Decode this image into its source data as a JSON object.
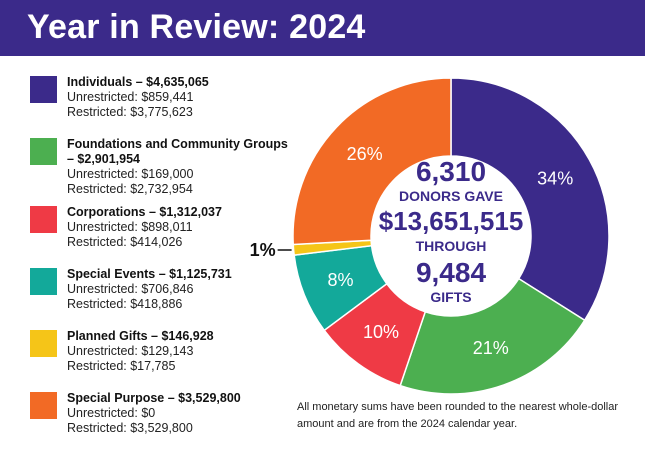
{
  "title": "Year in Review: 2024",
  "colors": {
    "header_bg": "#3b2a8a",
    "individuals": "#3b2a8a",
    "foundations": "#4caf50",
    "corporations": "#ef3a45",
    "special_events": "#13a99a",
    "planned_gifts": "#f5c518",
    "special_purpose": "#f26a25"
  },
  "legend": [
    {
      "name": "Individuals – $4,635,065",
      "lines": [
        "Unrestricted: $859,441",
        "Restricted: $3,775,623"
      ],
      "color": "#3b2a8a"
    },
    {
      "name": "Foundations and Community Groups – $2,901,954",
      "lines": [
        "Unrestricted: $169,000",
        "Restricted: $2,732,954"
      ],
      "color": "#4caf50"
    },
    {
      "name": "Corporations – $1,312,037",
      "lines": [
        "Unrestricted: $898,011",
        "Restricted: $414,026"
      ],
      "color": "#ef3a45"
    },
    {
      "name": "Special Events – $1,125,731",
      "lines": [
        "Unrestricted: $706,846",
        "Restricted: $418,886"
      ],
      "color": "#13a99a"
    },
    {
      "name": "Planned Gifts – $146,928",
      "lines": [
        "Unrestricted: $129,143",
        "Restricted: $17,785"
      ],
      "color": "#f5c518"
    },
    {
      "name": "Special Purpose – $3,529,800",
      "lines": [
        "Unrestricted: $0",
        "Restricted: $3,529,800"
      ],
      "color": "#f26a25"
    }
  ],
  "center": {
    "donors": "6,310",
    "donors_label": "DONORS GAVE",
    "total": "$13,651,515",
    "through": "THROUGH",
    "gifts": "9,484",
    "gifts_label": "GIFTS"
  },
  "footnote": "All monetary sums have been rounded to the nearest whole-dollar amount and are from the 2024 calendar year.",
  "chart_data": {
    "type": "pie",
    "categories": [
      "Individuals",
      "Foundations and Community Groups",
      "Corporations",
      "Special Events",
      "Planned Gifts",
      "Special Purpose"
    ],
    "values": [
      4635065,
      2901954,
      1312037,
      1125731,
      146928,
      3529800
    ],
    "percent_labels": [
      "34%",
      "21%",
      "10%",
      "8%",
      "1%",
      "26%"
    ],
    "colors": [
      "#3b2a8a",
      "#4caf50",
      "#ef3a45",
      "#13a99a",
      "#f5c518",
      "#f26a25"
    ]
  }
}
